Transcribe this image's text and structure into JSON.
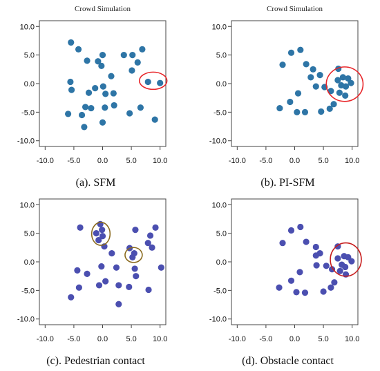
{
  "chart_data": [
    {
      "type": "scatter",
      "title": "Crowd Simulation",
      "caption": "(a). SFM",
      "xlim": [
        -11,
        11
      ],
      "ylim": [
        -11,
        11
      ],
      "xticks": [
        "-10.0",
        "-5.0",
        "0.0",
        "5.0",
        "10.0"
      ],
      "yticks": [
        "-10.0",
        "-5.0",
        "0.0",
        "5.0",
        "10.0"
      ],
      "point_color": "#2e75a6",
      "highlight_color": "#e8262a",
      "points": [
        [
          -5.5,
          7.2
        ],
        [
          -4.2,
          6.0
        ],
        [
          -2.7,
          4.0
        ],
        [
          -0.8,
          3.9
        ],
        [
          0.0,
          5.0
        ],
        [
          -0.2,
          3.1
        ],
        [
          3.7,
          5.0
        ],
        [
          5.2,
          5.0
        ],
        [
          6.9,
          6.0
        ],
        [
          6.1,
          3.7
        ],
        [
          5.1,
          2.3
        ],
        [
          1.5,
          1.3
        ],
        [
          -5.6,
          0.3
        ],
        [
          -5.4,
          -1.1
        ],
        [
          -2.4,
          -1.6
        ],
        [
          -1.3,
          -0.8
        ],
        [
          0.1,
          -0.5
        ],
        [
          0.5,
          -1.8
        ],
        [
          1.9,
          -1.7
        ],
        [
          -3.0,
          -4.1
        ],
        [
          -3.6,
          -5.5
        ],
        [
          -2.0,
          -4.3
        ],
        [
          0.4,
          -4.2
        ],
        [
          2.0,
          -3.8
        ],
        [
          6.6,
          -4.2
        ],
        [
          -6.0,
          -5.3
        ],
        [
          -3.2,
          -7.6
        ],
        [
          0.0,
          -6.8
        ],
        [
          4.7,
          -5.2
        ],
        [
          9.1,
          -6.3
        ],
        [
          7.9,
          0.3
        ],
        [
          10.0,
          0.1
        ]
      ],
      "highlights": [
        {
          "cx": 8.8,
          "cy": 0.5,
          "rx": 2.4,
          "ry": 1.5
        }
      ]
    },
    {
      "type": "scatter",
      "title": "Crowd Simulation",
      "caption": "(b). PI-SFM",
      "xlim": [
        -11,
        11
      ],
      "ylim": [
        -11,
        11
      ],
      "xticks": [
        "-10.0",
        "-5.0",
        "0.0",
        "5.0",
        "10.0"
      ],
      "yticks": [
        "-10.0",
        "-5.0",
        "0.0",
        "5.0",
        "10.0"
      ],
      "point_color": "#2e75a6",
      "highlight_color": "#e8262a",
      "points": [
        [
          -0.6,
          5.4
        ],
        [
          1.0,
          5.9
        ],
        [
          -2.1,
          3.3
        ],
        [
          2.0,
          3.4
        ],
        [
          3.2,
          2.5
        ],
        [
          4.4,
          1.5
        ],
        [
          2.8,
          1.1
        ],
        [
          3.7,
          -0.5
        ],
        [
          5.2,
          -0.6
        ],
        [
          0.6,
          -1.7
        ],
        [
          -0.8,
          -3.2
        ],
        [
          -2.6,
          -4.3
        ],
        [
          0.4,
          -5.0
        ],
        [
          1.8,
          -5.0
        ],
        [
          4.6,
          -4.9
        ],
        [
          6.1,
          -4.4
        ],
        [
          6.8,
          -3.6
        ],
        [
          7.6,
          2.6
        ],
        [
          7.5,
          0.6
        ],
        [
          8.4,
          1.1
        ],
        [
          9.3,
          0.9
        ],
        [
          9.8,
          0.1
        ],
        [
          8.1,
          -0.3
        ],
        [
          8.9,
          -0.5
        ],
        [
          7.8,
          -1.6
        ],
        [
          8.8,
          -2.1
        ],
        [
          6.3,
          -1.3
        ]
      ],
      "highlights": [
        {
          "cx": 8.7,
          "cy": -0.1,
          "rx": 3.2,
          "ry": 3.0
        }
      ]
    },
    {
      "type": "scatter",
      "title": "",
      "caption": "(c). Pedestrian contact",
      "xlim": [
        -11,
        11
      ],
      "ylim": [
        -11,
        11
      ],
      "xticks": [
        "-10.0",
        "-5.0",
        "0.0",
        "5.0",
        "10.0"
      ],
      "yticks": [
        "-10.0",
        "-5.0",
        "0.0",
        "5.0",
        "10.0"
      ],
      "point_color": "#4b4fb0",
      "highlight_color": "#8a6a1e",
      "points": [
        [
          -3.9,
          6.0
        ],
        [
          -0.4,
          6.6
        ],
        [
          -1.1,
          5.0
        ],
        [
          -0.1,
          5.6
        ],
        [
          0.0,
          4.5
        ],
        [
          -0.7,
          3.8
        ],
        [
          5.7,
          5.6
        ],
        [
          8.3,
          4.6
        ],
        [
          9.2,
          6.0
        ],
        [
          7.9,
          3.3
        ],
        [
          8.6,
          2.5
        ],
        [
          4.7,
          2.4
        ],
        [
          5.5,
          1.5
        ],
        [
          5.2,
          0.8
        ],
        [
          1.6,
          1.5
        ],
        [
          0.3,
          2.7
        ],
        [
          10.2,
          -1.0
        ],
        [
          -0.2,
          -0.8
        ],
        [
          2.4,
          -1.0
        ],
        [
          5.6,
          -1.2
        ],
        [
          -4.4,
          -1.5
        ],
        [
          -2.7,
          -2.1
        ],
        [
          5.8,
          -2.5
        ],
        [
          0.5,
          -3.4
        ],
        [
          -0.6,
          -4.1
        ],
        [
          2.8,
          -4.1
        ],
        [
          -4.1,
          -4.5
        ],
        [
          4.6,
          -4.4
        ],
        [
          8.0,
          -4.9
        ],
        [
          -5.5,
          -6.2
        ],
        [
          2.8,
          -7.4
        ]
      ],
      "highlights": [
        {
          "cx": -0.3,
          "cy": 4.9,
          "rx": 1.6,
          "ry": 2.0
        },
        {
          "cx": 5.4,
          "cy": 1.2,
          "rx": 1.5,
          "ry": 1.3
        }
      ]
    },
    {
      "type": "scatter",
      "title": "",
      "caption": "(d). Obstacle contact",
      "xlim": [
        -11,
        11
      ],
      "ylim": [
        -11,
        11
      ],
      "xticks": [
        "-10.0",
        "-5.0",
        "0.0",
        "5.0",
        "10.0"
      ],
      "yticks": [
        "-10.0",
        "-5.0",
        "0.0",
        "5.0",
        "10.0"
      ],
      "point_color": "#4b4fb0",
      "highlight_color": "#c81e1e",
      "points": [
        [
          -0.6,
          5.5
        ],
        [
          1.0,
          6.1
        ],
        [
          -2.1,
          3.3
        ],
        [
          2.0,
          3.5
        ],
        [
          3.7,
          2.6
        ],
        [
          4.4,
          1.5
        ],
        [
          3.7,
          1.1
        ],
        [
          3.8,
          -0.6
        ],
        [
          5.5,
          -0.7
        ],
        [
          0.9,
          -1.8
        ],
        [
          -0.6,
          -3.3
        ],
        [
          -2.7,
          -4.5
        ],
        [
          0.3,
          -5.3
        ],
        [
          1.8,
          -5.4
        ],
        [
          5.0,
          -5.2
        ],
        [
          6.3,
          -4.5
        ],
        [
          6.9,
          -3.6
        ],
        [
          7.5,
          2.7
        ],
        [
          7.5,
          0.6
        ],
        [
          8.6,
          1.0
        ],
        [
          9.3,
          0.8
        ],
        [
          9.9,
          0.1
        ],
        [
          8.2,
          -0.5
        ],
        [
          8.8,
          -0.9
        ],
        [
          7.9,
          -1.6
        ],
        [
          8.9,
          -2.2
        ],
        [
          6.5,
          -1.3
        ]
      ],
      "highlights": [
        {
          "cx": 8.9,
          "cy": 0.4,
          "rx": 2.7,
          "ry": 2.9
        }
      ]
    }
  ]
}
